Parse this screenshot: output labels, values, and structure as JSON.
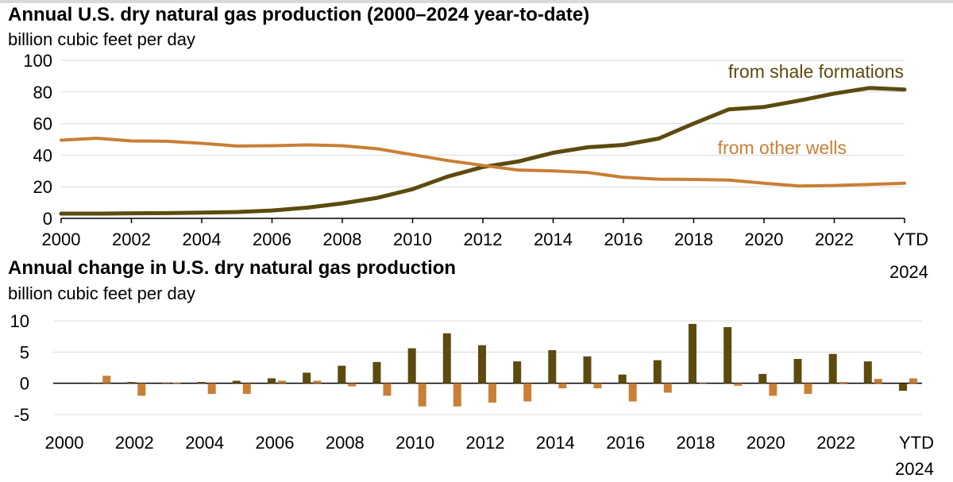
{
  "colors": {
    "shale": "#5c4a0f",
    "other": "#c97f35"
  },
  "chart_data": [
    {
      "type": "line",
      "title": "Annual U.S. dry natural gas production (2000–2024 year-to-date)",
      "ylabel": "billion cubic feet per day",
      "ylim": [
        0,
        100
      ],
      "yticks": [
        0,
        20,
        40,
        60,
        80,
        100
      ],
      "categories": [
        "2000",
        "2001",
        "2002",
        "2003",
        "2004",
        "2005",
        "2006",
        "2007",
        "2008",
        "2009",
        "2010",
        "2011",
        "2012",
        "2013",
        "2014",
        "2015",
        "2016",
        "2017",
        "2018",
        "2019",
        "2020",
        "2021",
        "2022",
        "2023",
        "YTD 2024"
      ],
      "xtick_labels": [
        {
          "label": "2000",
          "index": 0
        },
        {
          "label": "2002",
          "index": 2
        },
        {
          "label": "2004",
          "index": 4
        },
        {
          "label": "2006",
          "index": 6
        },
        {
          "label": "2008",
          "index": 8
        },
        {
          "label": "2010",
          "index": 10
        },
        {
          "label": "2012",
          "index": 12
        },
        {
          "label": "2014",
          "index": 14
        },
        {
          "label": "2016",
          "index": 16
        },
        {
          "label": "2018",
          "index": 18
        },
        {
          "label": "2020",
          "index": 20
        },
        {
          "label": "2022",
          "index": 22
        },
        {
          "label": "YTD",
          "label2": "2024",
          "index": 24
        }
      ],
      "grid": true,
      "series": [
        {
          "name": "from shale formations",
          "color_key": "shale",
          "values": [
            3.0,
            3.0,
            3.2,
            3.3,
            3.6,
            4.0,
            5.0,
            6.8,
            9.5,
            13.0,
            18.5,
            26.5,
            32.5,
            36.0,
            41.5,
            45.0,
            46.5,
            50.5,
            60.0,
            69.0,
            70.5,
            74.5,
            79.0,
            82.5,
            81.5
          ]
        },
        {
          "name": "from other wells",
          "color_key": "other",
          "values": [
            49.5,
            50.7,
            49.0,
            48.8,
            47.5,
            45.8,
            46.0,
            46.5,
            46.0,
            44.0,
            40.3,
            36.6,
            33.5,
            30.6,
            30.0,
            29.0,
            26.0,
            24.8,
            24.6,
            24.2,
            22.2,
            20.5,
            20.8,
            21.5,
            22.2
          ]
        }
      ]
    },
    {
      "type": "bar",
      "title": "Annual change in U.S. dry natural gas production",
      "ylabel": "billion cubic feet per day",
      "ylim": [
        -5,
        10
      ],
      "yticks": [
        -5,
        0,
        5,
        10
      ],
      "categories": [
        "2000",
        "2001",
        "2002",
        "2003",
        "2004",
        "2005",
        "2006",
        "2007",
        "2008",
        "2009",
        "2010",
        "2011",
        "2012",
        "2013",
        "2014",
        "2015",
        "2016",
        "2017",
        "2018",
        "2019",
        "2020",
        "2021",
        "2022",
        "2023",
        "YTD 2024"
      ],
      "xtick_labels": [
        {
          "label": "2000",
          "index": 0
        },
        {
          "label": "2002",
          "index": 2
        },
        {
          "label": "2004",
          "index": 4
        },
        {
          "label": "2006",
          "index": 6
        },
        {
          "label": "2008",
          "index": 8
        },
        {
          "label": "2010",
          "index": 10
        },
        {
          "label": "2012",
          "index": 12
        },
        {
          "label": "2014",
          "index": 14
        },
        {
          "label": "2016",
          "index": 16
        },
        {
          "label": "2018",
          "index": 18
        },
        {
          "label": "2020",
          "index": 20
        },
        {
          "label": "2022",
          "index": 22
        },
        {
          "label": "YTD",
          "label2": "2024",
          "index": 24
        }
      ],
      "grid": true,
      "series": [
        {
          "name": "from shale formations",
          "color_key": "shale",
          "values": [
            0,
            0.0,
            0.2,
            0.1,
            0.2,
            0.4,
            0.8,
            1.7,
            2.8,
            3.4,
            5.6,
            8.0,
            6.1,
            3.5,
            5.3,
            4.3,
            1.4,
            3.7,
            9.5,
            9.0,
            1.5,
            3.9,
            4.7,
            3.5,
            -1.2
          ]
        },
        {
          "name": "from other wells",
          "color_key": "other",
          "values": [
            0,
            1.2,
            -2.0,
            0.1,
            -1.7,
            -1.7,
            0.4,
            0.4,
            -0.5,
            -2.0,
            -3.7,
            -3.7,
            -3.1,
            -2.9,
            -0.8,
            -0.8,
            -2.9,
            -1.5,
            0.0,
            -0.4,
            -2.0,
            -1.7,
            0.2,
            0.7,
            0.8
          ]
        }
      ]
    }
  ]
}
